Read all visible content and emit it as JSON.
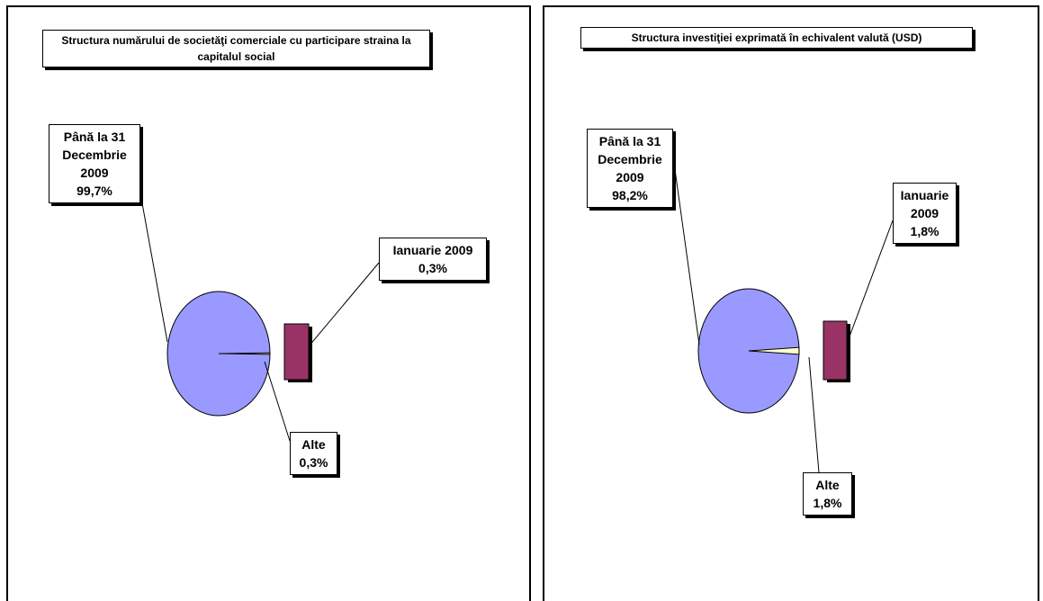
{
  "chart_data": [
    {
      "type": "pie",
      "title": "Structura numărului de societăţi comerciale cu participare straina la capitalul social",
      "slices": [
        {
          "category": "Până la 31 Decembrie 2009",
          "value": 99.7,
          "label": "99,7%",
          "color": "#9999ff"
        },
        {
          "category": "Ianuarie 2009",
          "value": 0.3,
          "label": "0,3%",
          "color": "#993366"
        },
        {
          "category": "Alte",
          "value": 0.3,
          "label": "0,3%",
          "color": "#ffffcc"
        }
      ]
    },
    {
      "type": "pie",
      "title": "Structura investiţiei exprimată în echivalent valută (USD)",
      "slices": [
        {
          "category": "Până la 31 Decembrie 2009",
          "value": 98.2,
          "label": "98,2%",
          "color": "#9999ff"
        },
        {
          "category": "Ianuarie 2009",
          "value": 1.8,
          "label": "1,8%",
          "color": "#993366"
        },
        {
          "category": "Alte",
          "value": 1.8,
          "label": "1,8%",
          "color": "#ffffcc"
        }
      ]
    }
  ],
  "labels": {
    "left": {
      "main": [
        "Până la 31",
        "Decembrie",
        "2009",
        "99,7%"
      ],
      "jan": [
        "Ianuarie 2009",
        "0,3%"
      ],
      "other": [
        "Alte",
        "0,3%"
      ]
    },
    "right": {
      "main": [
        "Până la 31",
        "Decembrie",
        "2009",
        "98,2%"
      ],
      "jan": [
        "Ianuarie",
        "2009",
        "1,8%"
      ],
      "other": [
        "Alte",
        "1,8%"
      ]
    }
  }
}
